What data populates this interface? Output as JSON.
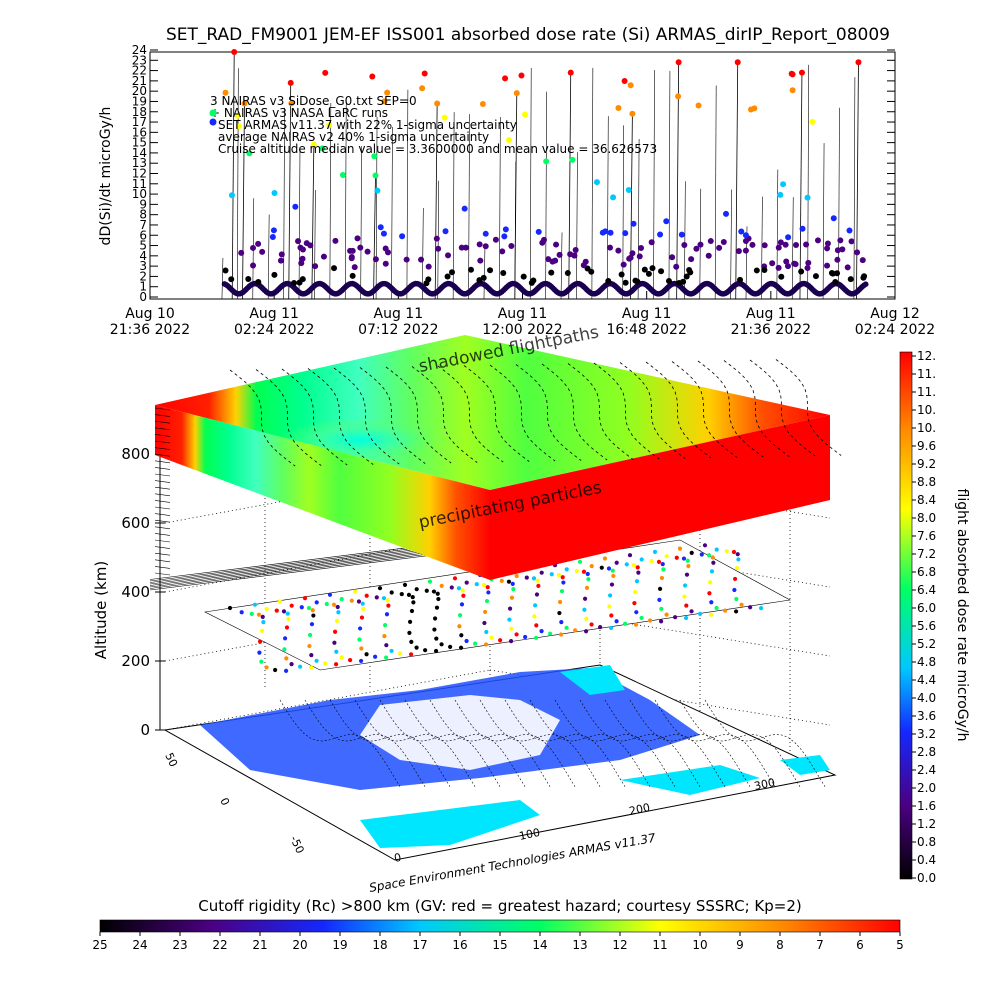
{
  "chart_data": [
    {
      "type": "scatter",
      "title": "SET_RAD_FM9001  JEM-EF ISS001 absorbed dose rate (Si) ARMAS_dirIP_Report_08009",
      "ylabel": "dD(Si)/dt microGy/h",
      "ylim": [
        0,
        24
      ],
      "y_ticks": [
        "0",
        "1",
        "2",
        "3",
        "4",
        "5",
        "6",
        "7",
        "8",
        "9",
        "10",
        "11",
        "12",
        "13",
        "14",
        "15",
        "16",
        "17",
        "18",
        "19",
        "20",
        "21",
        "22",
        "23",
        "24"
      ],
      "x_ticks": [
        {
          "line1": "Aug 10",
          "line2": "21:36 2022"
        },
        {
          "line1": "Aug 11",
          "line2": "02:24 2022"
        },
        {
          "line1": "Aug 11",
          "line2": "07:12 2022"
        },
        {
          "line1": "Aug 11",
          "line2": "12:00 2022"
        },
        {
          "line1": "Aug 11",
          "line2": "16:48 2022"
        },
        {
          "line1": "Aug 11",
          "line2": "21:36 2022"
        },
        {
          "line1": "Aug 12",
          "line2": "02:24 2022"
        }
      ],
      "legend": [
        "3 NAIRAS v3 SiDose_G0.txt SEP=0",
        "+ NAIRAS v3 NASA LaRC runs",
        "SET ARMAS v11.37 with 22% 1-sigma uncertainty",
        "average NAIRAS v2 40% 1-sigma uncertainty",
        "Cruise altitude median value = 3.3600000 and mean value = 36.626573"
      ],
      "legend_placement": "top-left",
      "grid": false,
      "sample_spikes": [
        {
          "x_hours": 3.2,
          "y": 24
        },
        {
          "x_hours": 3.6,
          "y": 19
        },
        {
          "x_hours": 5.4,
          "y": 21
        },
        {
          "x_hours": 6.3,
          "y": 15
        },
        {
          "x_hours": 8.7,
          "y": 12
        },
        {
          "x_hours": 11.1,
          "y": 19
        },
        {
          "x_hours": 14.2,
          "y": 20
        },
        {
          "x_hours": 16.3,
          "y": 22
        },
        {
          "x_hours": 18.7,
          "y": 18
        },
        {
          "x_hours": 20.5,
          "y": 23
        },
        {
          "x_hours": 22.8,
          "y": 23
        },
        {
          "x_hours": 25.3,
          "y": 22
        },
        {
          "x_hours": 27.5,
          "y": 23
        }
      ]
    },
    {
      "type": "heatmap",
      "axis_title": "Altitude (km)",
      "z_ticks": [
        "0",
        "200",
        "400",
        "600",
        "800"
      ],
      "lat_ticks": [
        "-50",
        "0",
        "50"
      ],
      "lon_ticks": [
        "0",
        "100",
        "200",
        "300"
      ],
      "annotations": [
        "shadowed flightpaths",
        "precipitating particles"
      ],
      "credit": "Space Environment Technologies ARMAS v11.37"
    },
    {
      "type": "heatmap",
      "role": "colorbar",
      "label": "flight absorbed dose rate microGy/h",
      "ticks": [
        "12.",
        "11.",
        "11.",
        "10.",
        "10.",
        "9.6",
        "9.2",
        "8.8",
        "8.4",
        "8.0",
        "7.6",
        "7.2",
        "6.8",
        "6.4",
        "6.0",
        "5.6",
        "5.2",
        "4.8",
        "4.4",
        "4.0",
        "3.6",
        "3.2",
        "2.8",
        "2.4",
        "2.0",
        "1.6",
        "1.2",
        "0.8",
        "0.4",
        "0.0"
      ]
    },
    {
      "type": "heatmap",
      "role": "colorbar",
      "label": "Cutoff rigidity (Rc) >800 km (GV: red = greatest hazard; courtesy SSSRC; Kp=2)",
      "ticks": [
        "25",
        "24",
        "23",
        "22",
        "21",
        "20",
        "19",
        "18",
        "17",
        "16",
        "15",
        "14",
        "13",
        "12",
        "11",
        "10",
        "9",
        "8",
        "7",
        "6",
        "5"
      ]
    }
  ],
  "colors": {
    "palette": [
      "#000000",
      "#4b0082",
      "#1428ff",
      "#00c8ff",
      "#00ff64",
      "#ffff00",
      "#ff8c00",
      "#ff0000"
    ],
    "land": "#1e50ff",
    "ocean_highlight": "#00e6ff"
  }
}
